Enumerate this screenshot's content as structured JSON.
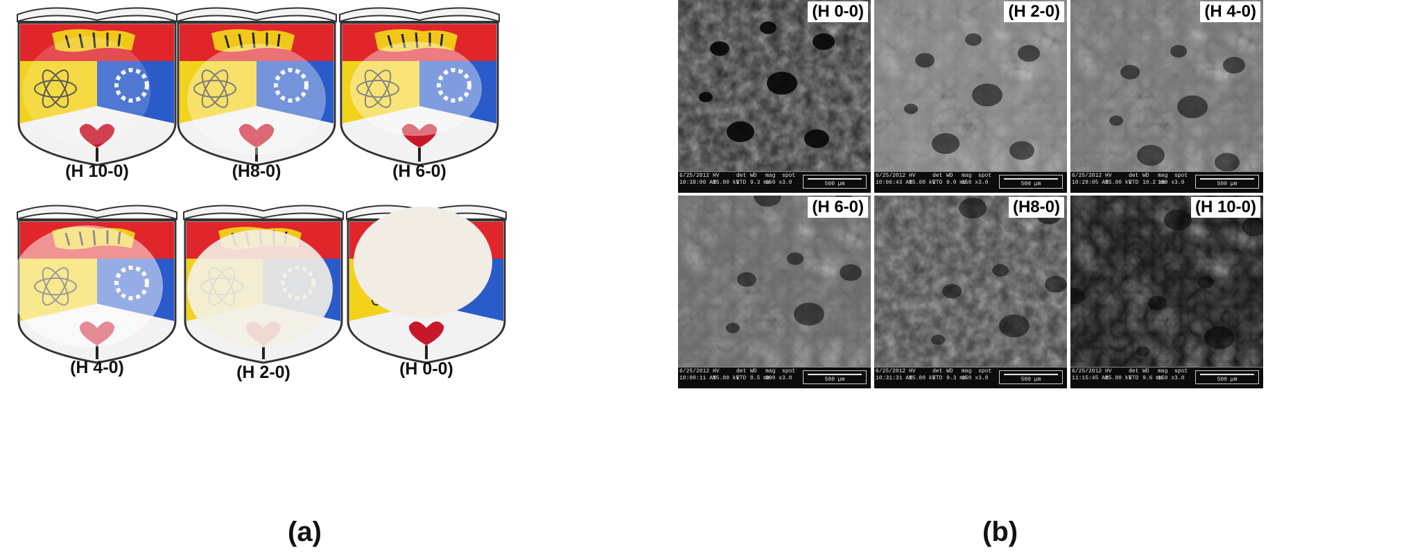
{
  "panel_a": {
    "letter": "(a)",
    "samples": [
      {
        "label": "(H 10-0)",
        "overlay": "clear"
      },
      {
        "label": "(H8-0)",
        "overlay": "clear"
      },
      {
        "label": "(H 6-0)",
        "overlay": "clear"
      },
      {
        "label": "(H 4-0)",
        "overlay": "translucent"
      },
      {
        "label": "(H 2-0)",
        "overlay": "cloudy"
      },
      {
        "label": "(H 0-0)",
        "overlay": "opaque"
      }
    ]
  },
  "panel_b": {
    "letter": "(b)",
    "images": [
      {
        "tag": "(H 0-0)",
        "date": "6/25/2012",
        "time": "10:38:00 AM",
        "hv": "15.00 kV",
        "det": "ETD",
        "wd": "9.3 mm",
        "mag": "150 x",
        "spot": "3.0",
        "scale": "500 µm"
      },
      {
        "tag": "(H 2-0)",
        "date": "6/25/2012",
        "time": "10:06:43 AM",
        "hv": "15.00 kV",
        "det": "ETD",
        "wd": "9.0 mm",
        "mag": "150 x",
        "spot": "3.0",
        "scale": "500 µm"
      },
      {
        "tag": "(H 4-0)",
        "date": "6/25/2012",
        "time": "10:28:05 AM",
        "hv": "15.00 kV",
        "det": "ETD",
        "wd": "10.2 mm",
        "mag": "150 x",
        "spot": "3.0",
        "scale": "500 µm"
      },
      {
        "tag": "(H 6-0)",
        "date": "6/25/2012",
        "time": "10:00:11 AM",
        "hv": "15.00 kV",
        "det": "ETD",
        "wd": "8.5 mm",
        "mag": "200 x",
        "spot": "3.0",
        "scale": "500 µm"
      },
      {
        "tag": "(H8-0)",
        "date": "6/25/2012",
        "time": "10:31:31 AM",
        "hv": "15.00 kV",
        "det": "ETD",
        "wd": "9.3 mm",
        "mag": "150 x",
        "spot": "3.0",
        "scale": "500 µm"
      },
      {
        "tag": "(H 10-0)",
        "date": "6/25/2012",
        "time": "11:15:45 AM",
        "hv": "15.00 kV",
        "det": "ETD",
        "wd": "9.6 mm",
        "mag": "150 x",
        "spot": "3.0",
        "scale": "500 µm"
      }
    ],
    "databar_headers": {
      "hv": "HV",
      "det": "det",
      "wd": "WD",
      "mag": "mag",
      "spot": "spot"
    }
  },
  "colors": {
    "shield_red": "#e0262b",
    "shield_yellow": "#f3d21c",
    "shield_blue": "#2a5bc8",
    "book_white": "#f4f4f4",
    "tiger_yellow": "#f1c81a"
  }
}
